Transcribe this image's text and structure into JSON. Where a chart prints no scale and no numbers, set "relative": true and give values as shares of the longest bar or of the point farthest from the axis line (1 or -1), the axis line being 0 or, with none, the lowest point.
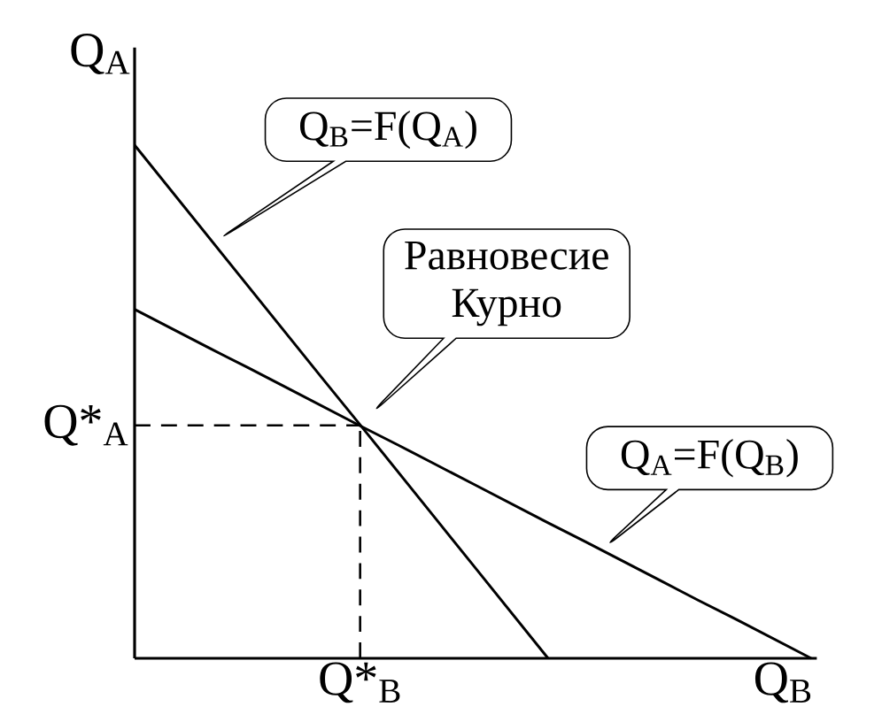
{
  "chart_data": {
    "type": "line",
    "relative": true,
    "xlabel": "Q$_{B}$",
    "ylabel": "Q$_{A}$",
    "marker": "none",
    "categories": [
      null,
      null,
      null,
      null,
      null,
      null,
      null,
      null,
      null,
      null,
      null,
      null,
      null,
      null,
      null,
      null,
      null,
      null,
      null
    ],
    "series": [
      {
        "values": [
          1,
          0.909,
          0.818,
          0.727,
          0.636,
          0.545,
          0.455,
          0.364,
          0.273,
          0.182,
          0.091,
          0,
          null,
          null,
          null,
          null,
          null,
          null,
          null
        ],
        "color": "#000000"
      },
      {
        "values": [
          0.68,
          0.642,
          0.604,
          0.567,
          0.529,
          0.491,
          0.453,
          0.416,
          0.378,
          0.34,
          0.302,
          0.264,
          0.227,
          0.189,
          0.151,
          0.113,
          0.076,
          0.038,
          0
        ],
        "color": "#000000"
      }
    ],
    "ref_lines": [
      {
        "axis": "y",
        "value": 0.454,
        "label": "Q*$_{A}$",
        "color": "#000000",
        "line_style": "dashed"
      }
    ],
    "annotations": [
      "Q$_{B}$=F(Q$_{A}$)",
      "Равновесие Курно",
      "Q$_{A}$=F(Q$_{B}$)",
      "Q*$_{B}$"
    ]
  }
}
